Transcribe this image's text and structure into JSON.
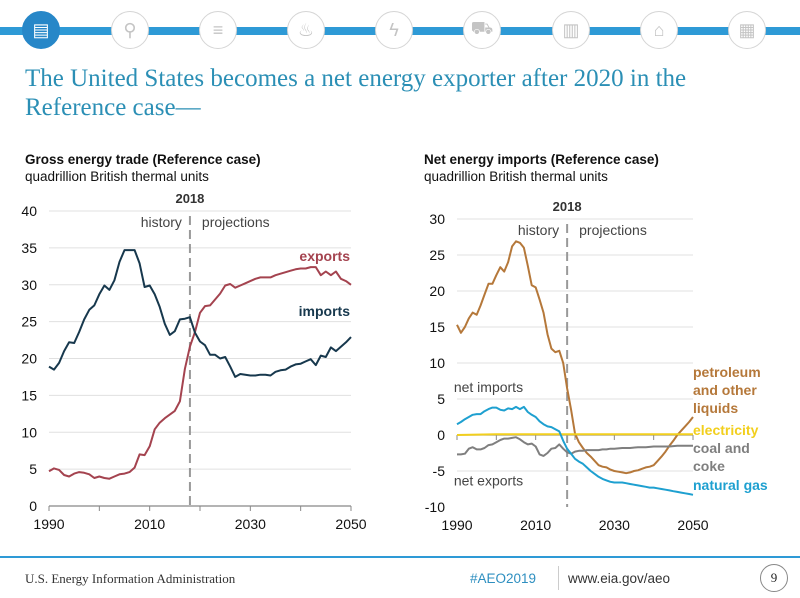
{
  "nav": {
    "icons": [
      {
        "name": "overview-icon",
        "glyph": "▤",
        "active": true
      },
      {
        "name": "analysis-icon",
        "glyph": "⚲",
        "active": false
      },
      {
        "name": "oil-barrel-icon",
        "glyph": "≡",
        "active": false
      },
      {
        "name": "flame-icon",
        "glyph": "♨",
        "active": false
      },
      {
        "name": "electricity-icon",
        "glyph": "ϟ",
        "active": false
      },
      {
        "name": "car-icon",
        "glyph": "⛟",
        "active": false
      },
      {
        "name": "building-icon",
        "glyph": "▥",
        "active": false
      },
      {
        "name": "factory-icon",
        "glyph": "⌂",
        "active": false
      },
      {
        "name": "document-icon",
        "glyph": "▦",
        "active": false
      }
    ]
  },
  "slide": {
    "title": "The United States becomes a net energy exporter after 2020 in the Reference case—"
  },
  "footer": {
    "org": "U.S. Energy Information Administration",
    "hashtag": "#AEO2019",
    "url": "www.eia.gov/aeo",
    "page": "9"
  },
  "colors": {
    "accent": "#2e9ad6",
    "title": "#2b8fb5",
    "exports": "#a4434f",
    "imports": "#17384d",
    "petroleum": "#b5783a",
    "electricity": "#f2cf1d",
    "coal": "#7f7f7f",
    "natural_gas": "#1ea0d0"
  },
  "chart_data": [
    {
      "type": "line",
      "title": "Gross energy trade (Reference case)",
      "subtitle": "quadrillion British thermal units",
      "xlabel": "",
      "ylabel": "",
      "xlim": [
        1990,
        2050
      ],
      "ylim": [
        0,
        40
      ],
      "x_ticks": [
        1990,
        2010,
        2030,
        2050
      ],
      "y_ticks": [
        0,
        5,
        10,
        15,
        20,
        25,
        30,
        35,
        40
      ],
      "grid": true,
      "divider": {
        "year": 2018,
        "label": "2018",
        "left_label": "history",
        "right_label": "projections"
      },
      "series": [
        {
          "name": "exports",
          "label": "exports",
          "color_key": "exports",
          "x": [
            1990,
            1991,
            1992,
            1993,
            1994,
            1995,
            1996,
            1997,
            1998,
            1999,
            2000,
            2001,
            2002,
            2003,
            2004,
            2005,
            2006,
            2007,
            2008,
            2009,
            2010,
            2011,
            2012,
            2013,
            2014,
            2015,
            2016,
            2017,
            2018,
            2019,
            2020,
            2021,
            2022,
            2023,
            2024,
            2025,
            2026,
            2027,
            2028,
            2029,
            2030,
            2031,
            2032,
            2033,
            2034,
            2035,
            2036,
            2037,
            2038,
            2039,
            2040,
            2041,
            2042,
            2043,
            2044,
            2045,
            2046,
            2047,
            2048,
            2049,
            2050
          ],
          "values": [
            4.7,
            5.1,
            4.9,
            4.2,
            4.0,
            4.4,
            4.6,
            4.5,
            4.3,
            3.8,
            4.0,
            3.8,
            3.7,
            4.0,
            4.3,
            4.4,
            4.6,
            5.2,
            7.0,
            6.9,
            8.1,
            10.4,
            11.3,
            11.9,
            12.4,
            12.9,
            14.2,
            18.6,
            21.6,
            23.6,
            26.2,
            27.1,
            27.2,
            28.0,
            28.8,
            29.9,
            30.1,
            29.6,
            29.9,
            30.2,
            30.5,
            30.8,
            31.0,
            31.0,
            31.0,
            31.3,
            31.5,
            31.7,
            31.9,
            32.1,
            32.2,
            32.2,
            32.4,
            32.4,
            31.3,
            31.8,
            31.3,
            31.8,
            30.8,
            30.5,
            30.0
          ]
        },
        {
          "name": "imports",
          "label": "imports",
          "color_key": "imports",
          "x": [
            1990,
            1991,
            1992,
            1993,
            1994,
            1995,
            1996,
            1997,
            1998,
            1999,
            2000,
            2001,
            2002,
            2003,
            2004,
            2005,
            2006,
            2007,
            2008,
            2009,
            2010,
            2011,
            2012,
            2013,
            2014,
            2015,
            2016,
            2017,
            2018,
            2019,
            2020,
            2021,
            2022,
            2023,
            2024,
            2025,
            2026,
            2027,
            2028,
            2029,
            2030,
            2031,
            2032,
            2033,
            2034,
            2035,
            2036,
            2037,
            2038,
            2039,
            2040,
            2041,
            2042,
            2043,
            2044,
            2045,
            2046,
            2047,
            2048,
            2049,
            2050
          ],
          "values": [
            18.9,
            18.5,
            19.4,
            21.0,
            22.2,
            22.1,
            23.6,
            25.3,
            26.6,
            27.2,
            28.7,
            29.9,
            29.3,
            30.6,
            33.1,
            34.7,
            34.7,
            34.7,
            32.9,
            29.7,
            29.9,
            28.7,
            27.0,
            24.7,
            23.2,
            23.7,
            25.3,
            25.4,
            25.6,
            23.5,
            22.3,
            21.8,
            20.5,
            20.5,
            20.0,
            20.2,
            18.9,
            17.5,
            17.9,
            17.8,
            17.7,
            17.7,
            17.8,
            17.8,
            17.7,
            18.2,
            18.4,
            18.5,
            18.9,
            19.2,
            19.3,
            19.6,
            19.9,
            19.1,
            20.4,
            20.2,
            21.5,
            21.0,
            21.6,
            22.2,
            22.9
          ]
        }
      ]
    },
    {
      "type": "line",
      "title": "Net energy imports (Reference case)",
      "subtitle": "quadrillion British thermal units",
      "xlabel": "",
      "ylabel": "",
      "xlim": [
        1990,
        2050
      ],
      "ylim": [
        -10,
        30
      ],
      "x_ticks": [
        1990,
        2010,
        2030,
        2050
      ],
      "y_ticks": [
        -10,
        -5,
        0,
        5,
        10,
        15,
        20,
        25,
        30
      ],
      "grid": true,
      "divider": {
        "year": 2018,
        "label": "2018",
        "left_label": "history",
        "right_label": "projections"
      },
      "annotations": [
        {
          "text": "net imports",
          "x": 1998,
          "y": 6
        },
        {
          "text": "net exports",
          "x": 1998,
          "y": -7
        }
      ],
      "series": [
        {
          "name": "petroleum and other liquids",
          "label_lines": [
            "petroleum",
            "and other",
            "liquids"
          ],
          "color_key": "petroleum",
          "x": [
            1990,
            1991,
            1992,
            1993,
            1994,
            1995,
            1996,
            1997,
            1998,
            1999,
            2000,
            2001,
            2002,
            2003,
            2004,
            2005,
            2006,
            2007,
            2008,
            2009,
            2010,
            2011,
            2012,
            2013,
            2014,
            2015,
            2016,
            2017,
            2018,
            2019,
            2020,
            2021,
            2022,
            2023,
            2024,
            2025,
            2026,
            2027,
            2028,
            2029,
            2030,
            2031,
            2032,
            2033,
            2034,
            2035,
            2036,
            2037,
            2038,
            2039,
            2040,
            2041,
            2042,
            2043,
            2044,
            2045,
            2046,
            2047,
            2048,
            2049,
            2050
          ],
          "values": [
            15.3,
            14.2,
            15.0,
            16.2,
            17.0,
            16.7,
            18.0,
            19.5,
            21.0,
            21.0,
            22.2,
            23.3,
            22.7,
            24.0,
            26.2,
            26.9,
            26.7,
            26.0,
            23.5,
            20.8,
            20.5,
            18.8,
            17.0,
            14.0,
            12.0,
            11.5,
            11.7,
            10.0,
            6.5,
            3.5,
            0.2,
            -1.0,
            -1.8,
            -2.5,
            -3.0,
            -3.6,
            -4.2,
            -4.4,
            -4.5,
            -4.8,
            -5.0,
            -5.1,
            -5.2,
            -5.3,
            -5.2,
            -5.0,
            -4.9,
            -4.7,
            -4.5,
            -4.4,
            -4.2,
            -3.6,
            -3.0,
            -2.3,
            -1.5,
            -0.8,
            0.0,
            0.6,
            1.2,
            1.8,
            2.5
          ]
        },
        {
          "name": "electricity",
          "label_lines": [
            "electricity"
          ],
          "color_key": "electricity",
          "x": [
            1990,
            2000,
            2010,
            2018,
            2030,
            2040,
            2050
          ],
          "values": [
            0.0,
            0.1,
            0.1,
            0.1,
            0.1,
            0.1,
            0.1
          ]
        },
        {
          "name": "coal and coke",
          "label_lines": [
            "coal and",
            "coke"
          ],
          "color_key": "coal",
          "x": [
            1990,
            1991,
            1992,
            1993,
            1994,
            1995,
            1996,
            1997,
            1998,
            1999,
            2000,
            2001,
            2002,
            2003,
            2004,
            2005,
            2006,
            2007,
            2008,
            2009,
            2010,
            2011,
            2012,
            2013,
            2014,
            2015,
            2016,
            2017,
            2018,
            2019,
            2020,
            2021,
            2022,
            2023,
            2024,
            2025,
            2026,
            2027,
            2028,
            2029,
            2030,
            2032,
            2034,
            2036,
            2038,
            2040,
            2042,
            2044,
            2046,
            2048,
            2050
          ],
          "values": [
            -2.7,
            -2.7,
            -2.6,
            -1.9,
            -1.7,
            -2.0,
            -2.0,
            -1.8,
            -1.4,
            -1.3,
            -1.0,
            -0.7,
            -0.5,
            -0.5,
            -0.4,
            -0.3,
            -0.6,
            -1.0,
            -1.3,
            -1.2,
            -1.6,
            -2.7,
            -2.9,
            -2.5,
            -1.9,
            -1.8,
            -1.3,
            -1.9,
            -2.4,
            -2.6,
            -2.3,
            -2.2,
            -2.2,
            -2.1,
            -2.1,
            -2.1,
            -2.1,
            -2.0,
            -2.0,
            -1.9,
            -1.9,
            -1.8,
            -1.8,
            -1.7,
            -1.7,
            -1.6,
            -1.6,
            -1.6,
            -1.5,
            -1.5,
            -1.5
          ]
        },
        {
          "name": "natural gas",
          "label_lines": [
            "natural gas"
          ],
          "color_key": "natural_gas",
          "x": [
            1990,
            1991,
            1992,
            1993,
            1994,
            1995,
            1996,
            1997,
            1998,
            1999,
            2000,
            2001,
            2002,
            2003,
            2004,
            2005,
            2006,
            2007,
            2008,
            2009,
            2010,
            2011,
            2012,
            2013,
            2014,
            2015,
            2016,
            2017,
            2018,
            2019,
            2020,
            2021,
            2022,
            2023,
            2024,
            2025,
            2026,
            2027,
            2028,
            2029,
            2030,
            2031,
            2032,
            2033,
            2034,
            2035,
            2036,
            2037,
            2038,
            2039,
            2040,
            2041,
            2042,
            2043,
            2044,
            2045,
            2046,
            2047,
            2048,
            2049,
            2050
          ],
          "values": [
            1.5,
            1.8,
            2.2,
            2.5,
            2.8,
            2.9,
            2.9,
            3.3,
            3.6,
            3.8,
            3.8,
            3.5,
            3.4,
            3.7,
            3.6,
            3.9,
            3.6,
            3.9,
            3.2,
            2.8,
            2.5,
            1.9,
            1.5,
            1.2,
            1.1,
            0.8,
            0.5,
            -0.8,
            -1.9,
            -2.6,
            -3.3,
            -3.7,
            -4.0,
            -4.5,
            -5.0,
            -5.4,
            -5.8,
            -6.1,
            -6.3,
            -6.5,
            -6.6,
            -6.6,
            -6.6,
            -6.7,
            -6.8,
            -6.9,
            -7.0,
            -7.1,
            -7.2,
            -7.3,
            -7.3,
            -7.4,
            -7.5,
            -7.6,
            -7.7,
            -7.8,
            -7.9,
            -8.0,
            -8.1,
            -8.2,
            -8.3
          ]
        }
      ]
    }
  ]
}
